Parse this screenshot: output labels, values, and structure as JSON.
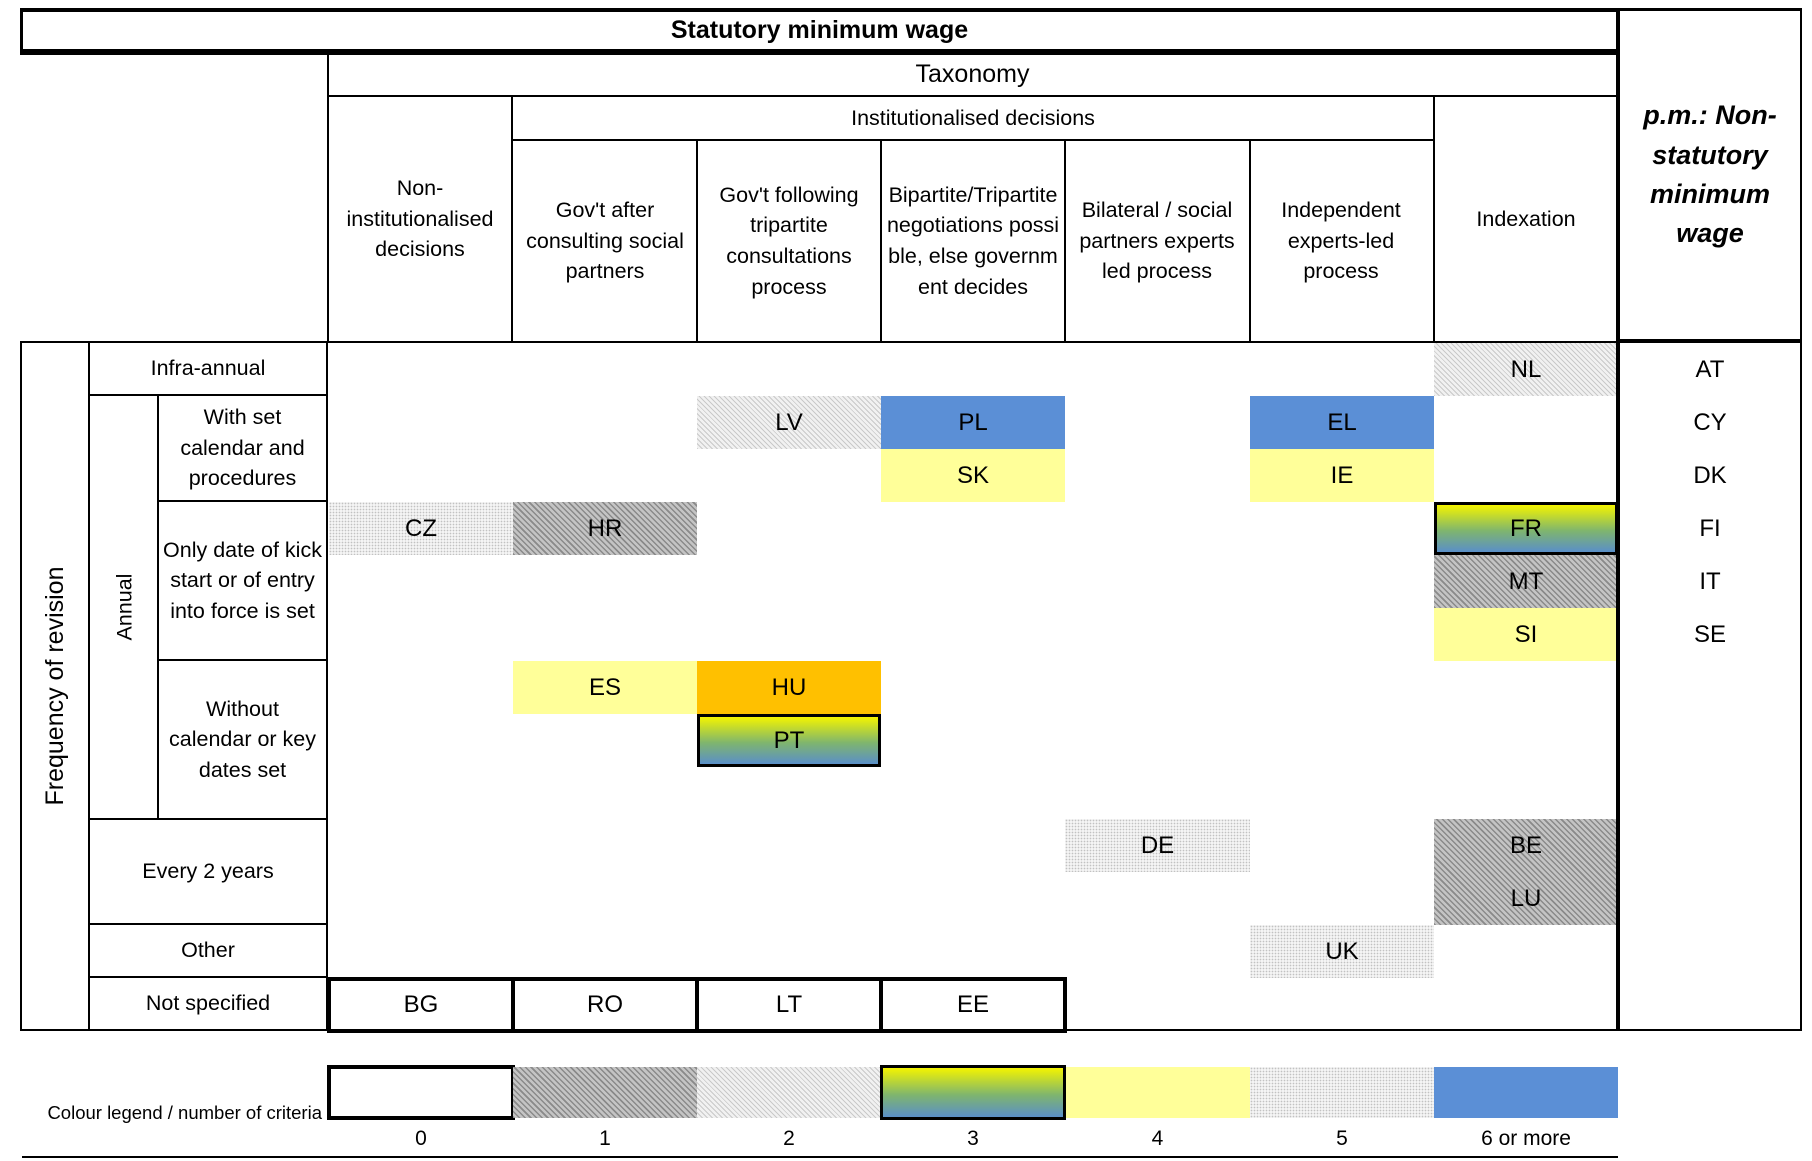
{
  "title": "Statutory minimum wage",
  "taxonomy_label": "Taxonomy",
  "institutionalised_label": "Institutionalised decisions",
  "columns": [
    "Non-institutionalised decisions",
    "Gov't after consulting social partners",
    "Gov't following tripartite consultations process",
    "Bipartite/Tripartite negotiations possible, else government decides",
    "Bilateral / social partners experts led process",
    "Independent experts-led process",
    "Indexation"
  ],
  "non_statutory_header": "p.m.: Non-statutory minimum wage",
  "frequency_label": "Frequency of revision",
  "annual_label": "Annual",
  "rows": {
    "infra_annual": "Infra-annual",
    "set_calendar": "With set calendar and procedures",
    "only_date": "Only date of kick start or of entry into force is set",
    "without_calendar": "Without calendar or key dates set",
    "every_2_years": "Every 2 years",
    "other": "Other",
    "not_specified": "Not specified"
  },
  "countries": {
    "NL": "NL",
    "LV": "LV",
    "PL": "PL",
    "EL": "EL",
    "SK": "SK",
    "IE": "IE",
    "CZ": "CZ",
    "HR": "HR",
    "FR": "FR",
    "MT": "MT",
    "SI": "SI",
    "ES": "ES",
    "HU": "HU",
    "PT": "PT",
    "DE": "DE",
    "BE": "BE",
    "LU": "LU",
    "UK": "UK",
    "BG": "BG",
    "RO": "RO",
    "LT": "LT",
    "EE": "EE"
  },
  "non_statutory_countries": [
    "AT",
    "CY",
    "DK",
    "FI",
    "IT",
    "SE"
  ],
  "legend": {
    "label": "Colour legend / number of criteria",
    "items": [
      "0",
      "1",
      "2",
      "3",
      "4",
      "5",
      "6 or more"
    ]
  },
  "colors": {
    "c0": "#ffffff",
    "c1": "hatched dark grey",
    "c2": "hatched light grey",
    "c3": "yellow-to-blue gradient",
    "c4": "#ffff99",
    "c5": "dotted light grey",
    "c6": "#5b8fd6",
    "orange": "#ffc000"
  }
}
